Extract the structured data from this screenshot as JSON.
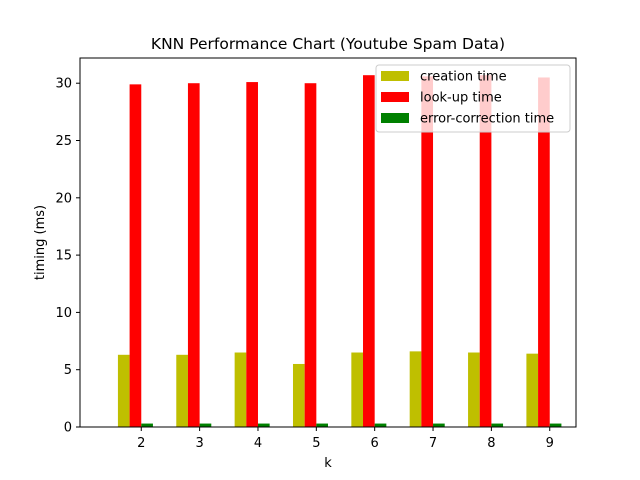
{
  "chart_data": {
    "type": "bar",
    "title": "KNN Performance Chart (Youtube Spam Data)",
    "xlabel": "k",
    "ylabel": "timing (ms)",
    "categories": [
      "2",
      "3",
      "4",
      "5",
      "6",
      "7",
      "8",
      "9"
    ],
    "ylim": [
      0,
      32.2
    ],
    "yticks": [
      0,
      5,
      10,
      15,
      20,
      25,
      30
    ],
    "legend_position": "top-right",
    "grid": false,
    "series": [
      {
        "name": "creation time",
        "color": "#bfbf00",
        "values": [
          6.3,
          6.3,
          6.5,
          5.5,
          6.5,
          6.6,
          6.5,
          6.4
        ]
      },
      {
        "name": "look-up time",
        "color": "#ff0000",
        "values": [
          29.9,
          30.0,
          30.1,
          30.0,
          30.7,
          30.6,
          30.7,
          30.5
        ]
      },
      {
        "name": "error-correction time",
        "color": "#008000",
        "values": [
          0.3,
          0.3,
          0.3,
          0.3,
          0.3,
          0.3,
          0.3,
          0.3
        ]
      }
    ]
  }
}
